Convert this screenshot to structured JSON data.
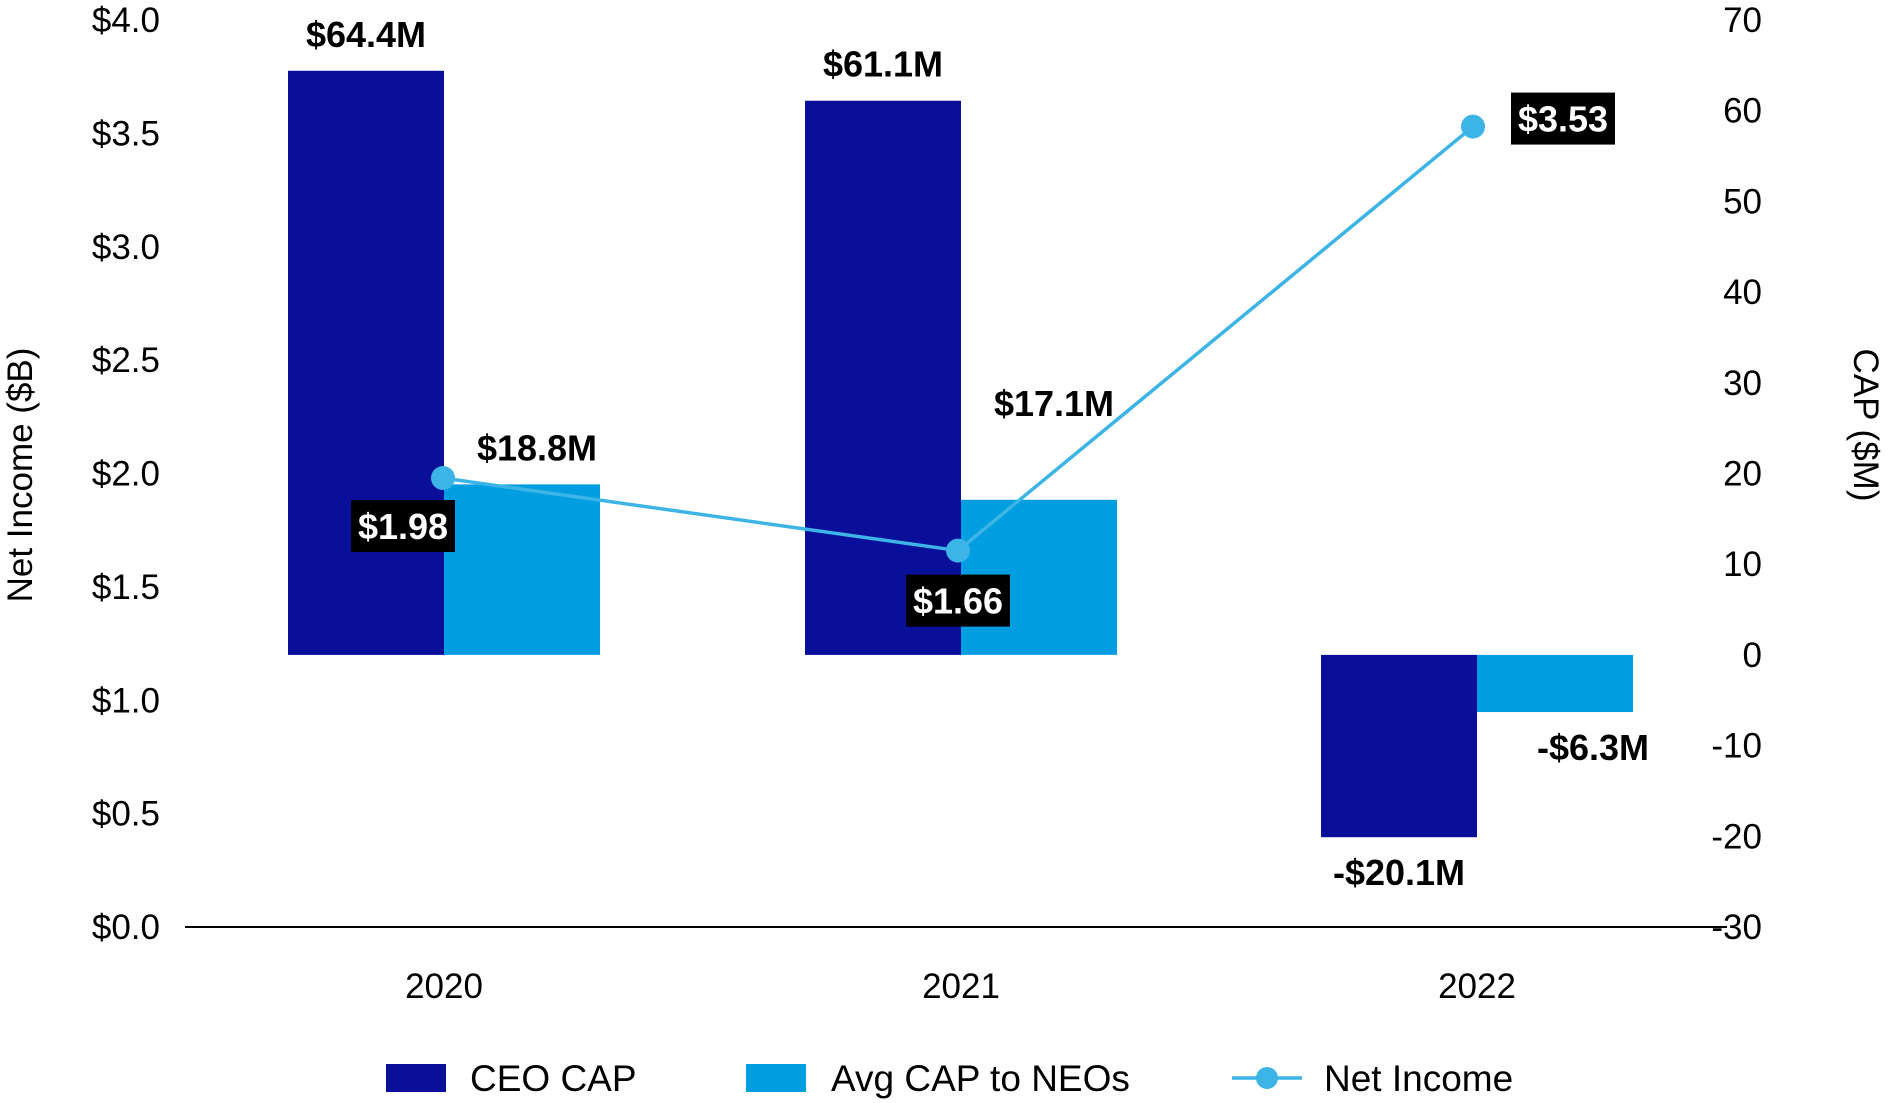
{
  "chart_data": {
    "type": "bar",
    "categories": [
      "2020",
      "2021",
      "2022"
    ],
    "series": [
      {
        "name": "CEO CAP",
        "kind": "bar",
        "axis": "right",
        "values": [
          64.4,
          61.1,
          -20.1
        ],
        "labels": [
          "$64.4M",
          "$61.1M",
          "-$20.1M"
        ],
        "color": "#0a0f9a"
      },
      {
        "name": "Avg CAP to NEOs",
        "kind": "bar",
        "axis": "right",
        "values": [
          18.8,
          17.1,
          -6.3
        ],
        "labels": [
          "$18.8M",
          "$17.1M",
          "-$6.3M"
        ],
        "color": "#009ee0"
      },
      {
        "name": "Net Income",
        "kind": "line",
        "axis": "left",
        "values": [
          1.98,
          1.66,
          3.53
        ],
        "labels": [
          "$1.98",
          "$1.66",
          "$3.53"
        ],
        "color": "#3cb4e6"
      }
    ],
    "y_left": {
      "label": "Net Income ($B)",
      "range": [
        0,
        4
      ],
      "ticks": [
        "$0.0",
        "$0.5",
        "$1.0",
        "$1.5",
        "$2.0",
        "$2.5",
        "$3.0",
        "$3.5",
        "$4.0"
      ]
    },
    "y_right": {
      "label": "CAP ($M)",
      "range": [
        -30,
        70
      ],
      "ticks": [
        "-30",
        "-20",
        "-10",
        "0",
        "10",
        "20",
        "30",
        "40",
        "50",
        "60",
        "70"
      ]
    },
    "grid": false,
    "legend_position": "bottom"
  }
}
